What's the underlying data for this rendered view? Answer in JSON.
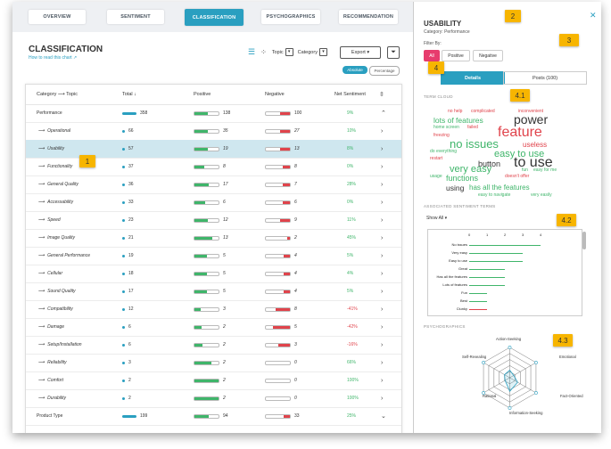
{
  "tabs": [
    "OVERVIEW",
    "SENTIMENT",
    "CLASSIFICATION",
    "PSYCHOGRAPHICS",
    "RECOMMENDATION"
  ],
  "header": {
    "title": "CLASSIFICATION",
    "howto": "How to read this chart ↗",
    "topic_label": "Topic",
    "category_label": "Category",
    "export_label": "Export ▾",
    "toggle_absolute": "Absolute",
    "toggle_percentage": "Percentage"
  },
  "table": {
    "columns": {
      "category": "Category ⟶ Topic",
      "total": "Total ↓",
      "positive": "Positive",
      "negative": "Negative",
      "net": "Net Sentiment"
    },
    "rows": [
      {
        "name": "Performance",
        "total": "358",
        "pos": "138",
        "neg": "100",
        "net": "9%",
        "level": 0,
        "chev": "⌃",
        "pf": 0.55,
        "nf": 0.4
      },
      {
        "name": "Operational",
        "total": "66",
        "pos": "35",
        "neg": "27",
        "net": "10%",
        "level": 1,
        "chev": "›",
        "pf": 0.55,
        "nf": 0.42
      },
      {
        "name": "Usability",
        "total": "57",
        "pos": "19",
        "neg": "13",
        "net": "8%",
        "level": 1,
        "chev": "›",
        "pf": 0.55,
        "nf": 0.42
      },
      {
        "name": "Functionality",
        "total": "37",
        "pos": "8",
        "neg": "8",
        "net": "0%",
        "level": 1,
        "chev": "›",
        "pf": 0.42,
        "nf": 0.3
      },
      {
        "name": "General Quality",
        "total": "36",
        "pos": "17",
        "neg": "7",
        "net": "28%",
        "level": 1,
        "chev": "›",
        "pf": 0.6,
        "nf": 0.28
      },
      {
        "name": "Accessability",
        "total": "33",
        "pos": "6",
        "neg": "6",
        "net": "0%",
        "level": 1,
        "chev": "›",
        "pf": 0.45,
        "nf": 0.3
      },
      {
        "name": "Speed",
        "total": "23",
        "pos": "12",
        "neg": "9",
        "net": "11%",
        "level": 1,
        "chev": "›",
        "pf": 0.55,
        "nf": 0.4
      },
      {
        "name": "Image Quality",
        "total": "21",
        "pos": "13",
        "neg": "2",
        "net": "45%",
        "level": 1,
        "chev": "›",
        "pf": 0.75,
        "nf": 0.12
      },
      {
        "name": "General Performance",
        "total": "19",
        "pos": "5",
        "neg": "4",
        "net": "5%",
        "level": 1,
        "chev": "›",
        "pf": 0.5,
        "nf": 0.25
      },
      {
        "name": "Cellular",
        "total": "18",
        "pos": "5",
        "neg": "4",
        "net": "4%",
        "level": 1,
        "chev": "›",
        "pf": 0.5,
        "nf": 0.25
      },
      {
        "name": "Sound Quality",
        "total": "17",
        "pos": "5",
        "neg": "4",
        "net": "5%",
        "level": 1,
        "chev": "›",
        "pf": 0.5,
        "nf": 0.25
      },
      {
        "name": "Compatibility",
        "total": "12",
        "pos": "3",
        "neg": "8",
        "net": "-41%",
        "level": 1,
        "chev": "›",
        "pf": 0.25,
        "nf": 0.6
      },
      {
        "name": "Damage",
        "total": "6",
        "pos": "2",
        "neg": "5",
        "net": "-42%",
        "level": 1,
        "chev": "›",
        "pf": 0.3,
        "nf": 0.7
      },
      {
        "name": "Setup/Installation",
        "total": "6",
        "pos": "2",
        "neg": "3",
        "net": "-16%",
        "level": 1,
        "chev": "›",
        "pf": 0.35,
        "nf": 0.5
      },
      {
        "name": "Reliability",
        "total": "3",
        "pos": "2",
        "neg": "0",
        "net": "66%",
        "level": 1,
        "chev": "›",
        "pf": 0.7,
        "nf": 0
      },
      {
        "name": "Comfort",
        "total": "2",
        "pos": "2",
        "neg": "0",
        "net": "100%",
        "level": 1,
        "chev": "›",
        "pf": 1.0,
        "nf": 0
      },
      {
        "name": "Durability",
        "total": "2",
        "pos": "2",
        "neg": "0",
        "net": "100%",
        "level": 1,
        "chev": "›",
        "pf": 1.0,
        "nf": 0
      },
      {
        "name": "Product Type",
        "total": "199",
        "pos": "94",
        "neg": "33",
        "net": "25%",
        "level": 0,
        "chev": "⌄",
        "pf": 0.6,
        "nf": 0.25
      }
    ]
  },
  "callouts": [
    "1",
    "2",
    "3",
    "4",
    "4.1",
    "4.2",
    "4.3"
  ],
  "panel": {
    "title": "USABILITY",
    "subtitle": "Category: Performance",
    "close": "✕",
    "filter_label": "Filter By:",
    "filters": [
      "All",
      "Positive",
      "Negative"
    ],
    "segments": [
      "Details",
      "Posts (100)"
    ],
    "term_cloud_label": "TERM CLOUD",
    "terms": [
      {
        "t": "no help",
        "c": "#e0434b"
      },
      {
        "t": "complicated",
        "c": "#e0434b"
      },
      {
        "t": "inconvenient",
        "c": "#e0434b"
      },
      {
        "t": "lots of features",
        "c": "#3fb56a"
      },
      {
        "t": "power",
        "c": "#333333"
      },
      {
        "t": "home screen",
        "c": "#3fb56a"
      },
      {
        "t": "failed",
        "c": "#e0434b"
      },
      {
        "t": "feature",
        "c": "#e0434b"
      },
      {
        "t": "freezing",
        "c": "#e0434b"
      },
      {
        "t": "no issues",
        "c": "#3fb56a"
      },
      {
        "t": "useless",
        "c": "#e0434b"
      },
      {
        "t": "do everything",
        "c": "#3fb56a"
      },
      {
        "t": "easy to use",
        "c": "#3fb56a"
      },
      {
        "t": "restart",
        "c": "#e0434b"
      },
      {
        "t": "button",
        "c": "#333333"
      },
      {
        "t": "to use",
        "c": "#333333"
      },
      {
        "t": "very easy",
        "c": "#3fb56a"
      },
      {
        "t": "fun",
        "c": "#3fb56a"
      },
      {
        "t": "easy for me",
        "c": "#3fb56a"
      },
      {
        "t": "usage",
        "c": "#3fb56a"
      },
      {
        "t": "functions",
        "c": "#3fb56a"
      },
      {
        "t": "doesn't offer",
        "c": "#e0434b"
      },
      {
        "t": "using",
        "c": "#333333"
      },
      {
        "t": "has all the features",
        "c": "#3fb56a"
      },
      {
        "t": "easy to navigate",
        "c": "#3fb56a"
      },
      {
        "t": "very easily",
        "c": "#3fb56a"
      }
    ],
    "assoc_label": "ASSOCIATED SENTIMENT TERMS",
    "show_all": "Show All ▾",
    "assoc_axis": [
      "0",
      "1",
      "2",
      "3",
      "4"
    ],
    "assoc_terms": [
      {
        "t": "No issues",
        "v": 4,
        "neg": false
      },
      {
        "t": "Very easy",
        "v": 3,
        "neg": false
      },
      {
        "t": "Easy to use",
        "v": 3,
        "neg": false
      },
      {
        "t": "Great",
        "v": 2,
        "neg": false
      },
      {
        "t": "Has all the features",
        "v": 2,
        "neg": false
      },
      {
        "t": "Lots of features",
        "v": 2,
        "neg": false
      },
      {
        "t": "Fun",
        "v": 1,
        "neg": false
      },
      {
        "t": "Best",
        "v": 1,
        "neg": false
      },
      {
        "t": "Clunky",
        "v": 1,
        "neg": true
      }
    ],
    "psycho_label": "PSYCHOGRAPHICS",
    "radar_axes": [
      "Action-Seeking",
      "Emotional",
      "Fact-Oriented",
      "Information-Seeking",
      "Rational",
      "Self-Revealing"
    ]
  },
  "colors": {
    "accent": "#2a9fc0",
    "positive": "#3fb56a",
    "negative": "#e0434b",
    "callout": "#f7b500",
    "filter_active": "#e73c6d"
  }
}
